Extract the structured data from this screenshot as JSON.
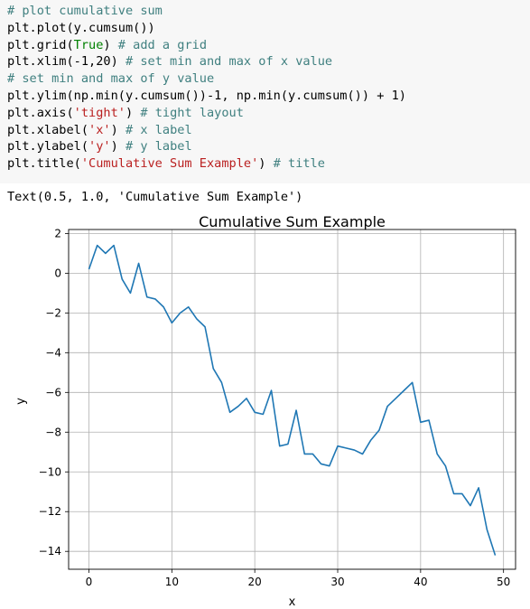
{
  "code": {
    "lines": [
      [
        {
          "t": "comment",
          "v": "# plot cumulative sum"
        }
      ],
      [
        {
          "t": "plain",
          "v": "plt.plot(y.cumsum())"
        }
      ],
      [
        {
          "t": "plain",
          "v": "plt.grid("
        },
        {
          "t": "kw",
          "v": "True"
        },
        {
          "t": "plain",
          "v": ") "
        },
        {
          "t": "comment",
          "v": "# add a grid"
        }
      ],
      [
        {
          "t": "plain",
          "v": "plt.xlim(-1,20) "
        },
        {
          "t": "comment",
          "v": "# set min and max of x value"
        }
      ],
      [
        {
          "t": "comment",
          "v": "# set min and max of y value"
        }
      ],
      [
        {
          "t": "plain",
          "v": "plt.ylim(np.min(y.cumsum())-1, np.min(y.cumsum()) + 1)"
        }
      ],
      [
        {
          "t": "plain",
          "v": "plt.axis("
        },
        {
          "t": "str",
          "v": "'tight'"
        },
        {
          "t": "plain",
          "v": ") "
        },
        {
          "t": "comment",
          "v": "# tight layout"
        }
      ],
      [
        {
          "t": "plain",
          "v": "plt.xlabel("
        },
        {
          "t": "str",
          "v": "'x'"
        },
        {
          "t": "plain",
          "v": ") "
        },
        {
          "t": "comment",
          "v": "# x label"
        }
      ],
      [
        {
          "t": "plain",
          "v": "plt.ylabel("
        },
        {
          "t": "str",
          "v": "'y'"
        },
        {
          "t": "plain",
          "v": ") "
        },
        {
          "t": "comment",
          "v": "# y label"
        }
      ],
      [
        {
          "t": "plain",
          "v": "plt.title("
        },
        {
          "t": "str",
          "v": "'Cumulative Sum Example'"
        },
        {
          "t": "plain",
          "v": ") "
        },
        {
          "t": "comment",
          "v": "# title"
        }
      ]
    ]
  },
  "output_text": "Text(0.5, 1.0, 'Cumulative Sum Example')",
  "chart_data": {
    "type": "line",
    "title": "Cumulative Sum Example",
    "xlabel": "x",
    "ylabel": "y",
    "xlim": [
      -2.45,
      51.45
    ],
    "ylim": [
      -14.9,
      2.2
    ],
    "xticks": [
      0,
      10,
      20,
      30,
      40,
      50
    ],
    "yticks": [
      2,
      0,
      -2,
      -4,
      -6,
      -8,
      -10,
      -12,
      -14
    ],
    "ytick_labels": [
      "2",
      "0",
      "−2",
      "−4",
      "−6",
      "−8",
      "−10",
      "−12",
      "−14"
    ],
    "grid": true,
    "line_color": "#1f77b4",
    "series": [
      {
        "x": [
          0,
          1,
          2,
          3,
          4,
          5,
          6,
          7,
          8,
          9,
          10,
          11,
          12,
          13,
          14,
          15,
          16,
          17,
          18,
          19,
          20,
          21,
          22,
          23,
          24,
          25,
          26,
          27,
          28,
          29,
          30,
          31,
          32,
          33,
          34,
          35,
          36,
          37,
          38,
          39,
          40,
          41,
          42,
          43,
          44,
          45,
          46,
          47,
          48,
          49
        ],
        "values": [
          0.2,
          1.4,
          1.0,
          1.4,
          -0.3,
          -1.0,
          0.5,
          -1.2,
          -1.3,
          -1.7,
          -2.5,
          -2.0,
          -1.7,
          -2.3,
          -2.7,
          -4.8,
          -5.5,
          -7.0,
          -6.7,
          -6.3,
          -7.0,
          -7.1,
          -5.9,
          -8.7,
          -8.6,
          -6.9,
          -9.1,
          -9.1,
          -9.6,
          -9.7,
          -8.7,
          -8.8,
          -8.9,
          -9.1,
          -8.4,
          -7.9,
          -6.7,
          -6.3,
          -5.9,
          -5.5,
          -7.5,
          -7.4,
          -9.1,
          -9.7,
          -11.1,
          -11.1,
          -11.7,
          -10.8,
          -12.9,
          -14.2
        ]
      }
    ]
  }
}
